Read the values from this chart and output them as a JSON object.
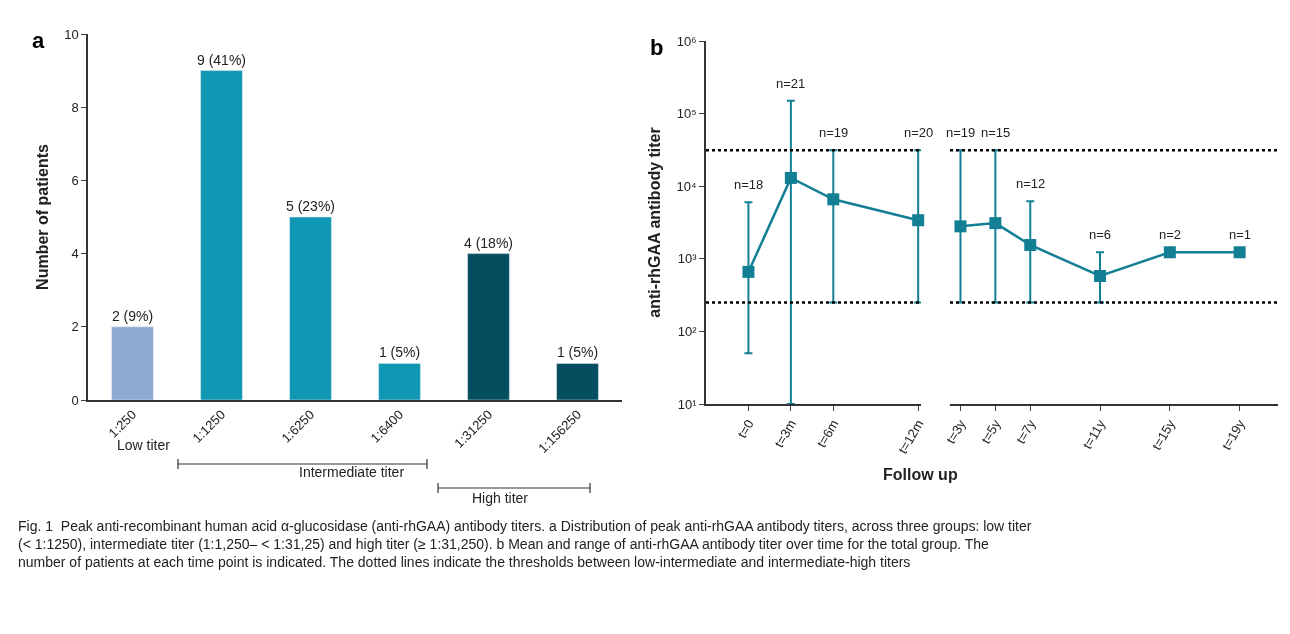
{
  "chart_data": [
    {
      "type": "bar",
      "title": "a",
      "ylabel": "Number of patients",
      "categories": [
        "1:250",
        "1:1250",
        "1:6250",
        "1:6400",
        "1:31250",
        "1:156250"
      ],
      "values": [
        2,
        9,
        5,
        1,
        4,
        1
      ],
      "colors": [
        "#8eaad2",
        "#1097b3",
        "#1097b3",
        "#1097b3",
        "#054e5f",
        "#054e5f"
      ],
      "value_labels": [
        "2 (9%)",
        "9 (41%)",
        "5 (23%)",
        "1 (5%)",
        "4 (18%)",
        "1 (5%)"
      ],
      "ylim": [
        0,
        10
      ],
      "yticks": [
        0,
        2,
        4,
        6,
        8,
        10
      ],
      "annotations": [
        "Low titer",
        "Intermediate titer",
        "High titer",
        "Fig. 1  Peak anti-recombinant human acid α-glucosidase (anti-rhGAA) antibody titers. a Distribution of peak anti-rhGAA antibody titers, across three groups: low titer (< 1:1250), intermediate titer (1:1,250– < 1:31,25) and high titer (≥ 1:31,250). b Mean and range of anti-rhGAA antibody titer over time for the total group. The number of patients at each time point is indicated. The dotted lines indicate the thresholds between low-intermediate and intermediate-high titers"
      ]
    },
    {
      "type": "line",
      "title": "b",
      "ylabel": "anti-rhGAA antibody titer",
      "xlabel": "Follow up",
      "x": [
        0,
        3,
        6,
        12
      ],
      "values": [
        660,
        13000,
        6600,
        3400
      ],
      "color": "#137f95",
      "marker": "square",
      "line_style": "solid",
      "errors": [
        [
          50,
          6000
        ],
        [
          10,
          150000
        ],
        [
          250,
          31250
        ],
        [
          250,
          31250
        ]
      ],
      "annotations": [
        {
          "text": "n=18",
          "x": 0,
          "y": 6000
        },
        {
          "text": "n=21",
          "x": 3,
          "y": 150000
        },
        {
          "text": "n=19",
          "x": 6,
          "y": 31250
        },
        {
          "text": "n=20",
          "x": 12,
          "y": 31250
        }
      ],
      "xlim": [
        -3,
        12.2
      ],
      "xticks": [
        {
          "value": 0,
          "label": "t=0"
        },
        {
          "value": 3,
          "label": "t=3m"
        },
        {
          "value": 6,
          "label": "t=6m"
        },
        {
          "value": 12,
          "label": "t=12m"
        }
      ],
      "ylim": [
        10,
        1000000
      ],
      "yticks": [
        {
          "value": 10,
          "label": "10¹"
        },
        {
          "value": 100,
          "label": "10²"
        },
        {
          "value": 1000,
          "label": "10³"
        },
        {
          "value": 10000,
          "label": "10⁴"
        },
        {
          "value": 100000,
          "label": "10⁵"
        },
        {
          "value": 1000000,
          "label": "10⁶"
        }
      ],
      "log": "y",
      "ref_lines": [
        {
          "axis": "y",
          "value": 31250,
          "color": "#000000",
          "line_style": "dotted"
        },
        {
          "axis": "y",
          "value": 250,
          "color": "#000000",
          "line_style": "dotted"
        }
      ]
    },
    {
      "type": "line",
      "x": [
        3,
        5,
        7,
        11,
        15,
        19
      ],
      "values": [
        2800,
        3100,
        1550,
        580,
        1230,
        1230
      ],
      "color": "#137f95",
      "marker": "square",
      "line_style": "solid",
      "errors": [
        [
          250,
          31250
        ],
        [
          250,
          31250
        ],
        [
          250,
          6200
        ],
        [
          250,
          1230
        ],
        null,
        null
      ],
      "annotations": [
        {
          "text": "n=19",
          "x": 3,
          "y": 31250
        },
        {
          "text": "n=15",
          "x": 5,
          "y": 31250
        },
        {
          "text": "n=12",
          "x": 7,
          "y": 6200
        },
        {
          "text": "n=6",
          "x": 11,
          "y": 1230
        },
        {
          "text": "n=2",
          "x": 15,
          "y": 1230
        },
        {
          "text": "n=1",
          "x": 19,
          "y": 1230
        }
      ],
      "xlim": [
        2.4,
        21.2
      ],
      "xticks": [
        {
          "value": 3,
          "label": "t=3y"
        },
        {
          "value": 5,
          "label": "t=5y"
        },
        {
          "value": 7,
          "label": "t=7y"
        },
        {
          "value": 11,
          "label": "t=11y"
        },
        {
          "value": 15,
          "label": "t=15y"
        },
        {
          "value": 19,
          "label": "t=19y"
        }
      ],
      "ylim": [
        10,
        1000000
      ],
      "log": "y",
      "tick_labels": "x",
      "ref_lines": [
        {
          "axis": "y",
          "value": 31250,
          "color": "#000000",
          "line_style": "dotted"
        },
        {
          "axis": "y",
          "value": 250,
          "color": "#000000",
          "line_style": "dotted"
        }
      ]
    }
  ]
}
